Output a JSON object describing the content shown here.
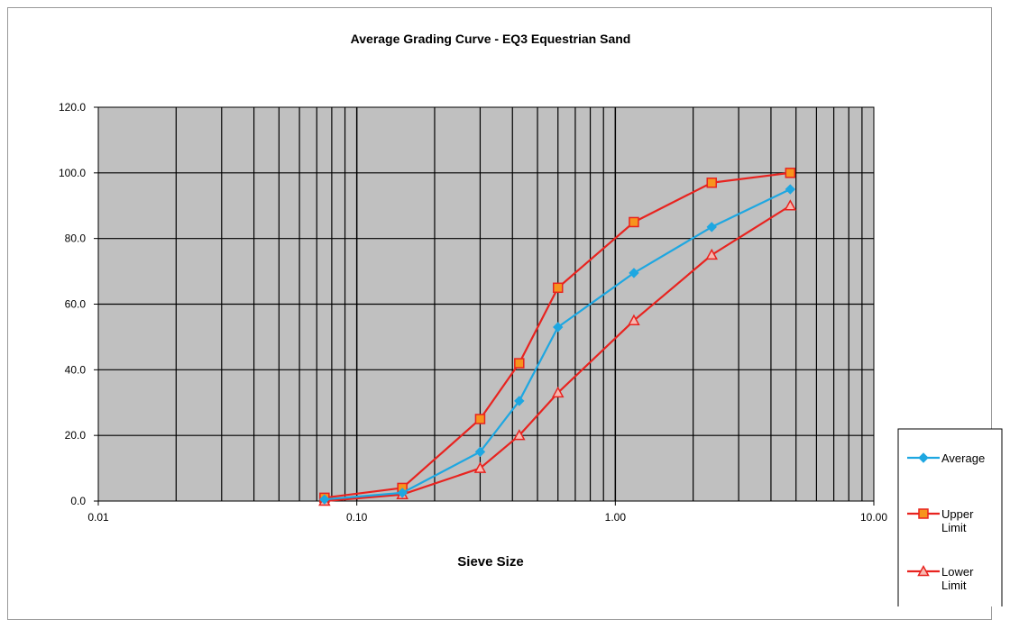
{
  "chart_data": {
    "type": "line",
    "title": "Average Grading Curve - EQ3 Equestrian Sand",
    "xlabel": "Sieve Size",
    "ylabel": "",
    "xscale": "log",
    "xlim": [
      0.01,
      10
    ],
    "ylim": [
      0,
      120
    ],
    "x_ticks": [
      "0.01",
      "0.10",
      "1.00",
      "10.00"
    ],
    "y_ticks": [
      "0.0",
      "20.0",
      "40.0",
      "60.0",
      "80.0",
      "100.0",
      "120.0"
    ],
    "grid": true,
    "plot_background": "#c0c0c0",
    "legend_position": "right",
    "series": [
      {
        "name": "Average",
        "color": "#1ea7e1",
        "marker": "diamond",
        "x": [
          0.075,
          0.15,
          0.3,
          0.425,
          0.6,
          1.18,
          2.36,
          4.75
        ],
        "values": [
          0.5,
          2.5,
          15.0,
          30.5,
          53.0,
          69.5,
          83.5,
          95.0
        ]
      },
      {
        "name": "Upper Limit",
        "color": "#e8231f",
        "marker": "square",
        "marker_fill": "#f7941d",
        "x": [
          0.075,
          0.15,
          0.3,
          0.425,
          0.6,
          1.18,
          2.36,
          4.75
        ],
        "values": [
          1.0,
          4.0,
          25.0,
          42.0,
          65.0,
          85.0,
          97.0,
          100.0
        ]
      },
      {
        "name": "Lower Limit",
        "color": "#e8231f",
        "marker": "triangle",
        "marker_fill": "#f7b8b0",
        "x": [
          0.075,
          0.15,
          0.3,
          0.425,
          0.6,
          1.18,
          2.36,
          4.75
        ],
        "values": [
          0.0,
          2.0,
          10.0,
          20.0,
          33.0,
          55.0,
          75.0,
          90.0
        ]
      }
    ]
  },
  "legend": {
    "entries": [
      {
        "lines": [
          "Average"
        ]
      },
      {
        "lines": [
          "Upper",
          "Limit"
        ]
      },
      {
        "lines": [
          "Lower",
          "Limit"
        ]
      }
    ]
  }
}
